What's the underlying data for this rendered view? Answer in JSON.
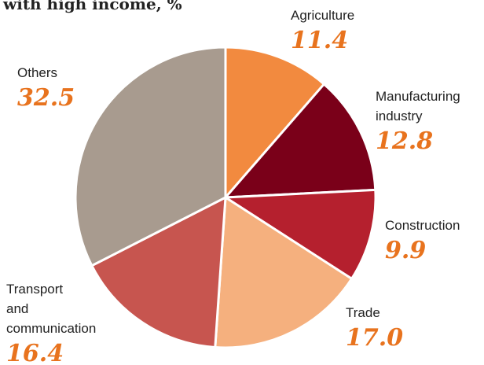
{
  "chart_data": {
    "type": "pie",
    "title": "with high income, %",
    "categories": [
      "Agriculture",
      "Manufacturing industry",
      "Construction",
      "Trade",
      "Transport and communication",
      "Others"
    ],
    "values": [
      11.4,
      12.8,
      9.9,
      17.0,
      16.4,
      32.5
    ],
    "value_labels": [
      "11.4",
      "12.8",
      "9.9",
      "17.0",
      "16.4",
      "32.5"
    ],
    "colors": [
      "#f28a3f",
      "#7a0019",
      "#b5202e",
      "#f5b07e",
      "#c7554f",
      "#a89b8f"
    ]
  }
}
